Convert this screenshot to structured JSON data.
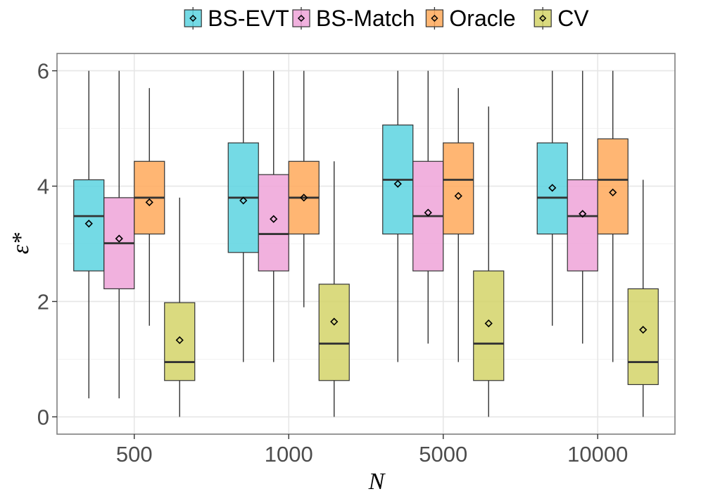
{
  "chart_data": {
    "type": "box",
    "xlabel": "N",
    "ylabel": "ε*",
    "ylim": [
      -0.3,
      6.3
    ],
    "yticks": [
      0,
      2,
      4,
      6
    ],
    "categories": [
      "500",
      "1000",
      "5000",
      "10000"
    ],
    "legend_position": "top",
    "series": [
      {
        "name": "BS-EVT",
        "color": "#5CD4E0",
        "boxes": [
          {
            "min": 0.32,
            "q1": 2.53,
            "median": 3.48,
            "q3": 4.11,
            "max": 6.0,
            "mean": 3.35
          },
          {
            "min": 0.95,
            "q1": 2.85,
            "median": 3.8,
            "q3": 4.75,
            "max": 6.0,
            "mean": 3.75
          },
          {
            "min": 0.95,
            "q1": 3.17,
            "median": 4.11,
            "q3": 5.06,
            "max": 6.0,
            "mean": 4.04
          },
          {
            "min": 1.58,
            "q1": 3.17,
            "median": 3.8,
            "q3": 4.75,
            "max": 6.0,
            "mean": 3.97
          }
        ]
      },
      {
        "name": "BS-Match",
        "color": "#EEA3D8",
        "boxes": [
          {
            "min": 0.32,
            "q1": 2.22,
            "median": 3.01,
            "q3": 3.8,
            "max": 6.0,
            "mean": 3.09
          },
          {
            "min": 0.95,
            "q1": 2.53,
            "median": 3.17,
            "q3": 4.2,
            "max": 6.0,
            "mean": 3.43
          },
          {
            "min": 1.27,
            "q1": 2.53,
            "median": 3.48,
            "q3": 4.43,
            "max": 6.0,
            "mean": 3.54
          },
          {
            "min": 1.27,
            "q1": 2.53,
            "median": 3.48,
            "q3": 4.11,
            "max": 6.0,
            "mean": 3.52
          }
        ]
      },
      {
        "name": "Oracle",
        "color": "#FFA95B",
        "boxes": [
          {
            "min": 1.58,
            "q1": 3.17,
            "median": 3.8,
            "q3": 4.43,
            "max": 5.7,
            "mean": 3.72
          },
          {
            "min": 1.9,
            "q1": 3.17,
            "median": 3.8,
            "q3": 4.43,
            "max": 6.0,
            "mean": 3.8
          },
          {
            "min": 0.95,
            "q1": 3.17,
            "median": 4.11,
            "q3": 4.75,
            "max": 5.7,
            "mean": 3.83
          },
          {
            "min": 0.95,
            "q1": 3.17,
            "median": 4.11,
            "q3": 4.82,
            "max": 6.0,
            "mean": 3.89
          }
        ]
      },
      {
        "name": "CV",
        "color": "#D4D468",
        "boxes": [
          {
            "min": 0.0,
            "q1": 0.63,
            "median": 0.95,
            "q3": 1.98,
            "max": 3.8,
            "mean": 1.33
          },
          {
            "min": 0.0,
            "q1": 0.63,
            "median": 1.27,
            "q3": 2.3,
            "max": 4.43,
            "mean": 1.65
          },
          {
            "min": 0.0,
            "q1": 0.63,
            "median": 1.27,
            "q3": 2.53,
            "max": 5.38,
            "mean": 1.62
          },
          {
            "min": 0.0,
            "q1": 0.56,
            "median": 0.95,
            "q3": 2.22,
            "max": 4.11,
            "mean": 1.51
          }
        ]
      }
    ]
  }
}
